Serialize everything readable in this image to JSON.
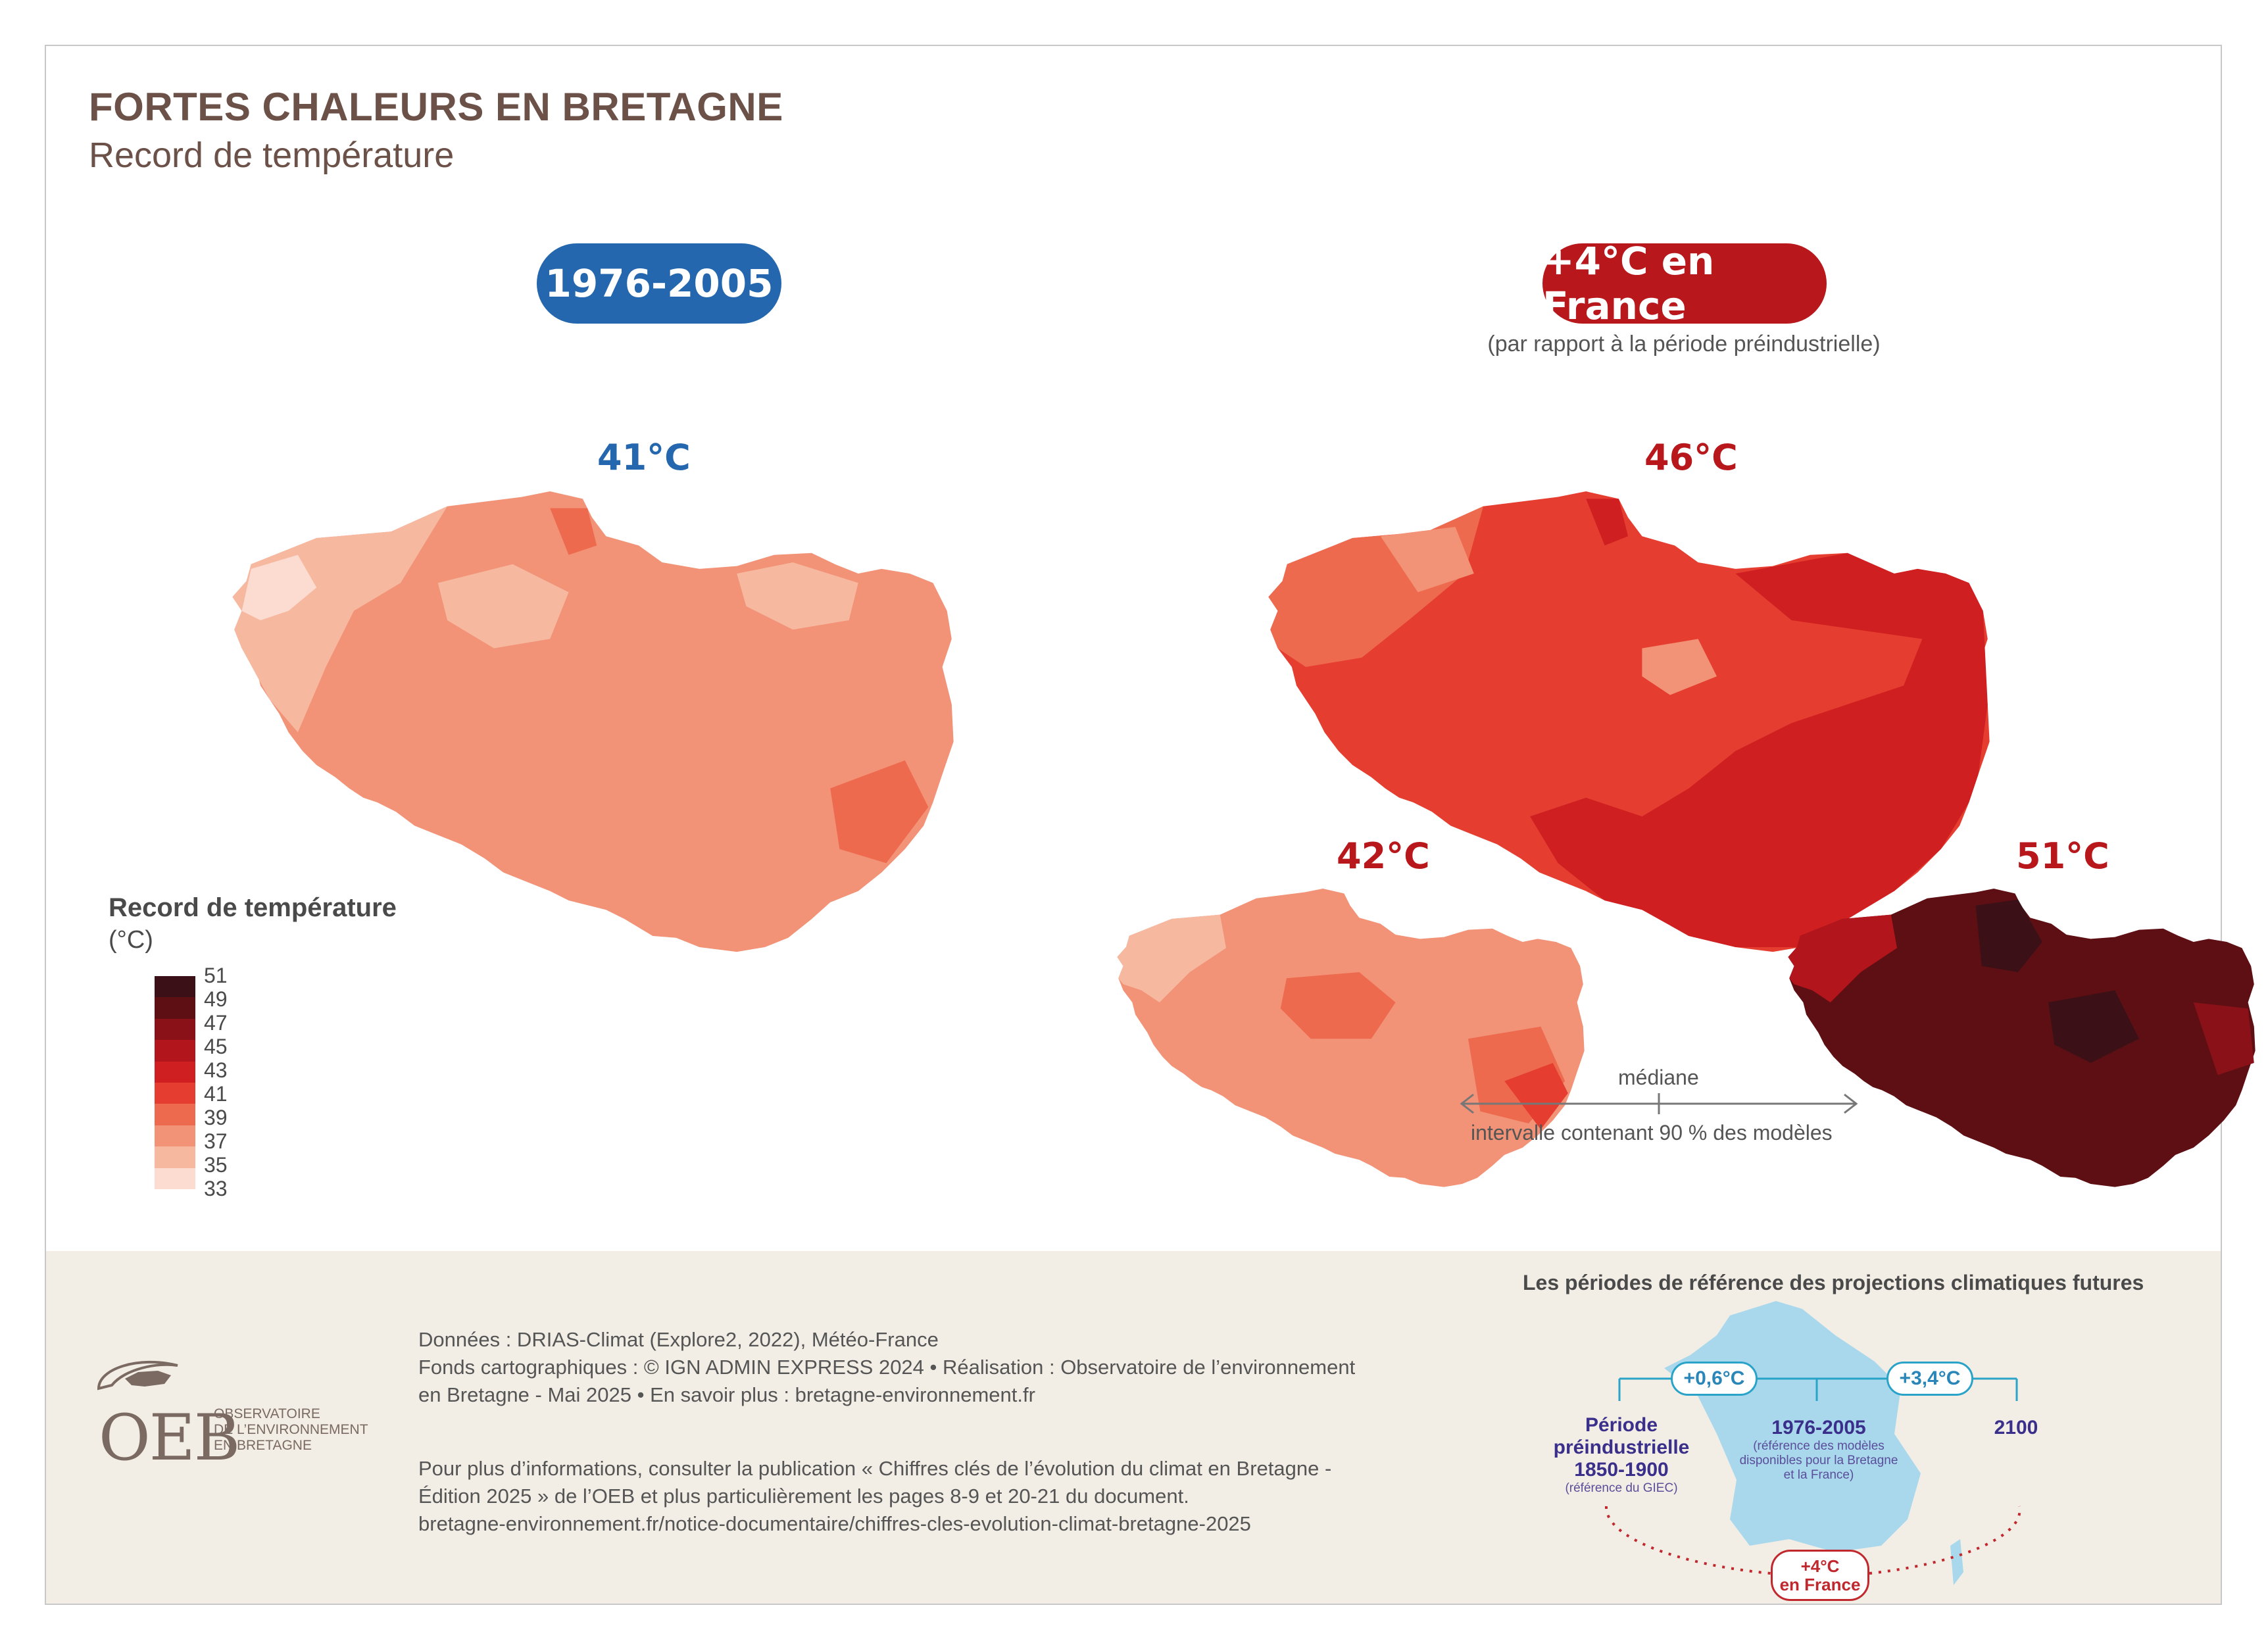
{
  "header": {
    "title": "FORTES CHALEURS EN BRETAGNE",
    "subtitle": "Record de température"
  },
  "periods": {
    "historical_label": "1976-2005",
    "future_label": "+4°C en France",
    "future_note": "(par rapport à la période préindustrielle)"
  },
  "maps": {
    "historical_value": "41°C",
    "future_median_value": "46°C",
    "future_low_value": "42°C",
    "future_high_value": "51°C",
    "median_label": "médiane",
    "interval_label": "intervalle contenant 90 % des modèles"
  },
  "legend": {
    "title": "Record de température",
    "unit": "(°C)",
    "ticks": [
      "51",
      "49",
      "47",
      "45",
      "43",
      "41",
      "39",
      "37",
      "35",
      "33"
    ],
    "colors": [
      "#3b1117",
      "#5e0f14",
      "#8a1118",
      "#b2151c",
      "#d01f21",
      "#e53e30",
      "#ee6a4f",
      "#f29276",
      "#f7b8a0",
      "#fcdcd0"
    ]
  },
  "footer": {
    "source_lines": [
      "Données : DRIAS-Climat (Explore2, 2022), Météo-France",
      "Fonds cartographiques : © IGN ADMIN EXPRESS 2024 • Réalisation : Observatoire de l’environnement",
      "en Bretagne - Mai 2025  • En savoir plus : bretagne-environnement.fr"
    ],
    "info_lines": [
      "Pour plus d’informations, consulter la publication « Chiffres clés de l’évolution du climat en Bretagne -",
      "Édition 2025 » de l’OEB et plus particulièrement les pages 8-9 et 20-21 du document.",
      "bretagne-environnement.fr/notice-documentaire/chiffres-cles-evolution-climat-bretagne-2025"
    ],
    "logo_word": "OEB",
    "logo_lines": [
      "OBSERVATOIRE",
      "DE L’ENVIRONNEMENT",
      "EN BRETAGNE"
    ]
  },
  "reference_inset": {
    "title": "Les périodes de référence des projections climatiques futures",
    "delta_1": "+0,6°C",
    "delta_2": "+3,4°C",
    "preindustrial": [
      "Période",
      "préindustrielle",
      "1850-1900"
    ],
    "preindustrial_note": "(référence du GIEC)",
    "recent": "1976-2005",
    "recent_note": [
      "(référence des modèles",
      "disponibles pour la Bretagne",
      "et la France)"
    ],
    "future_year": "2100",
    "france_warming": [
      "+4°C",
      "en France"
    ]
  }
}
